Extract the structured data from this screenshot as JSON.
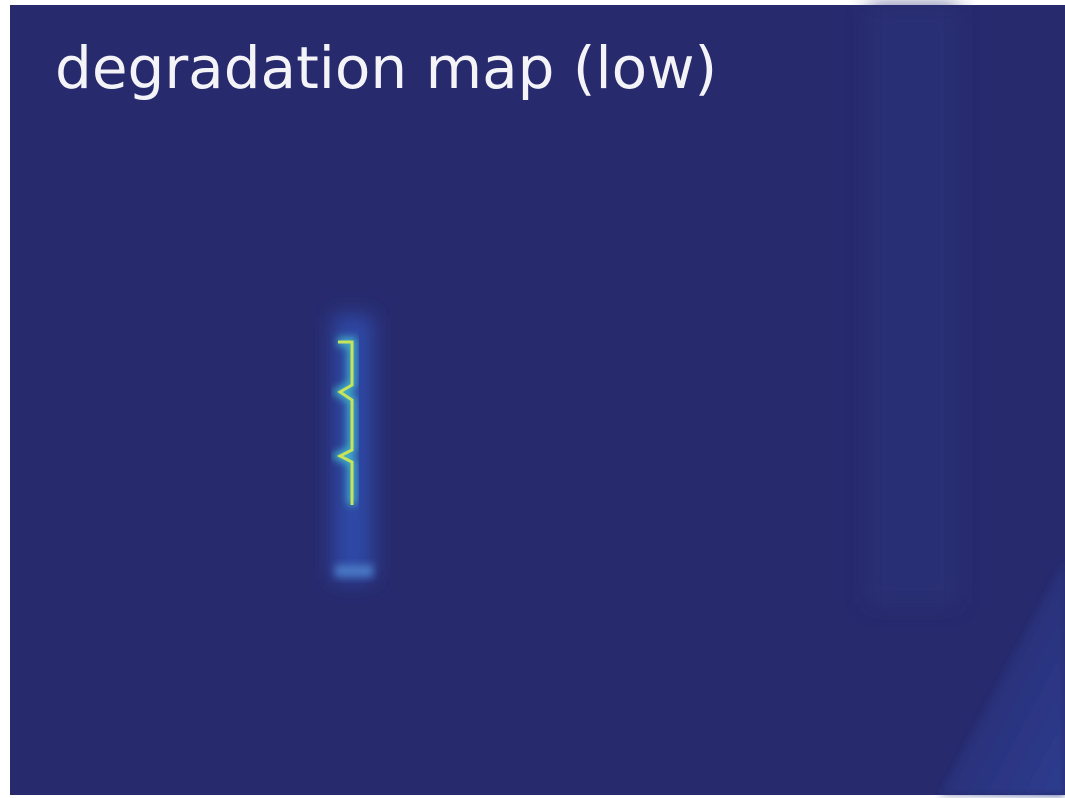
{
  "title": "degradation map (low)"
}
